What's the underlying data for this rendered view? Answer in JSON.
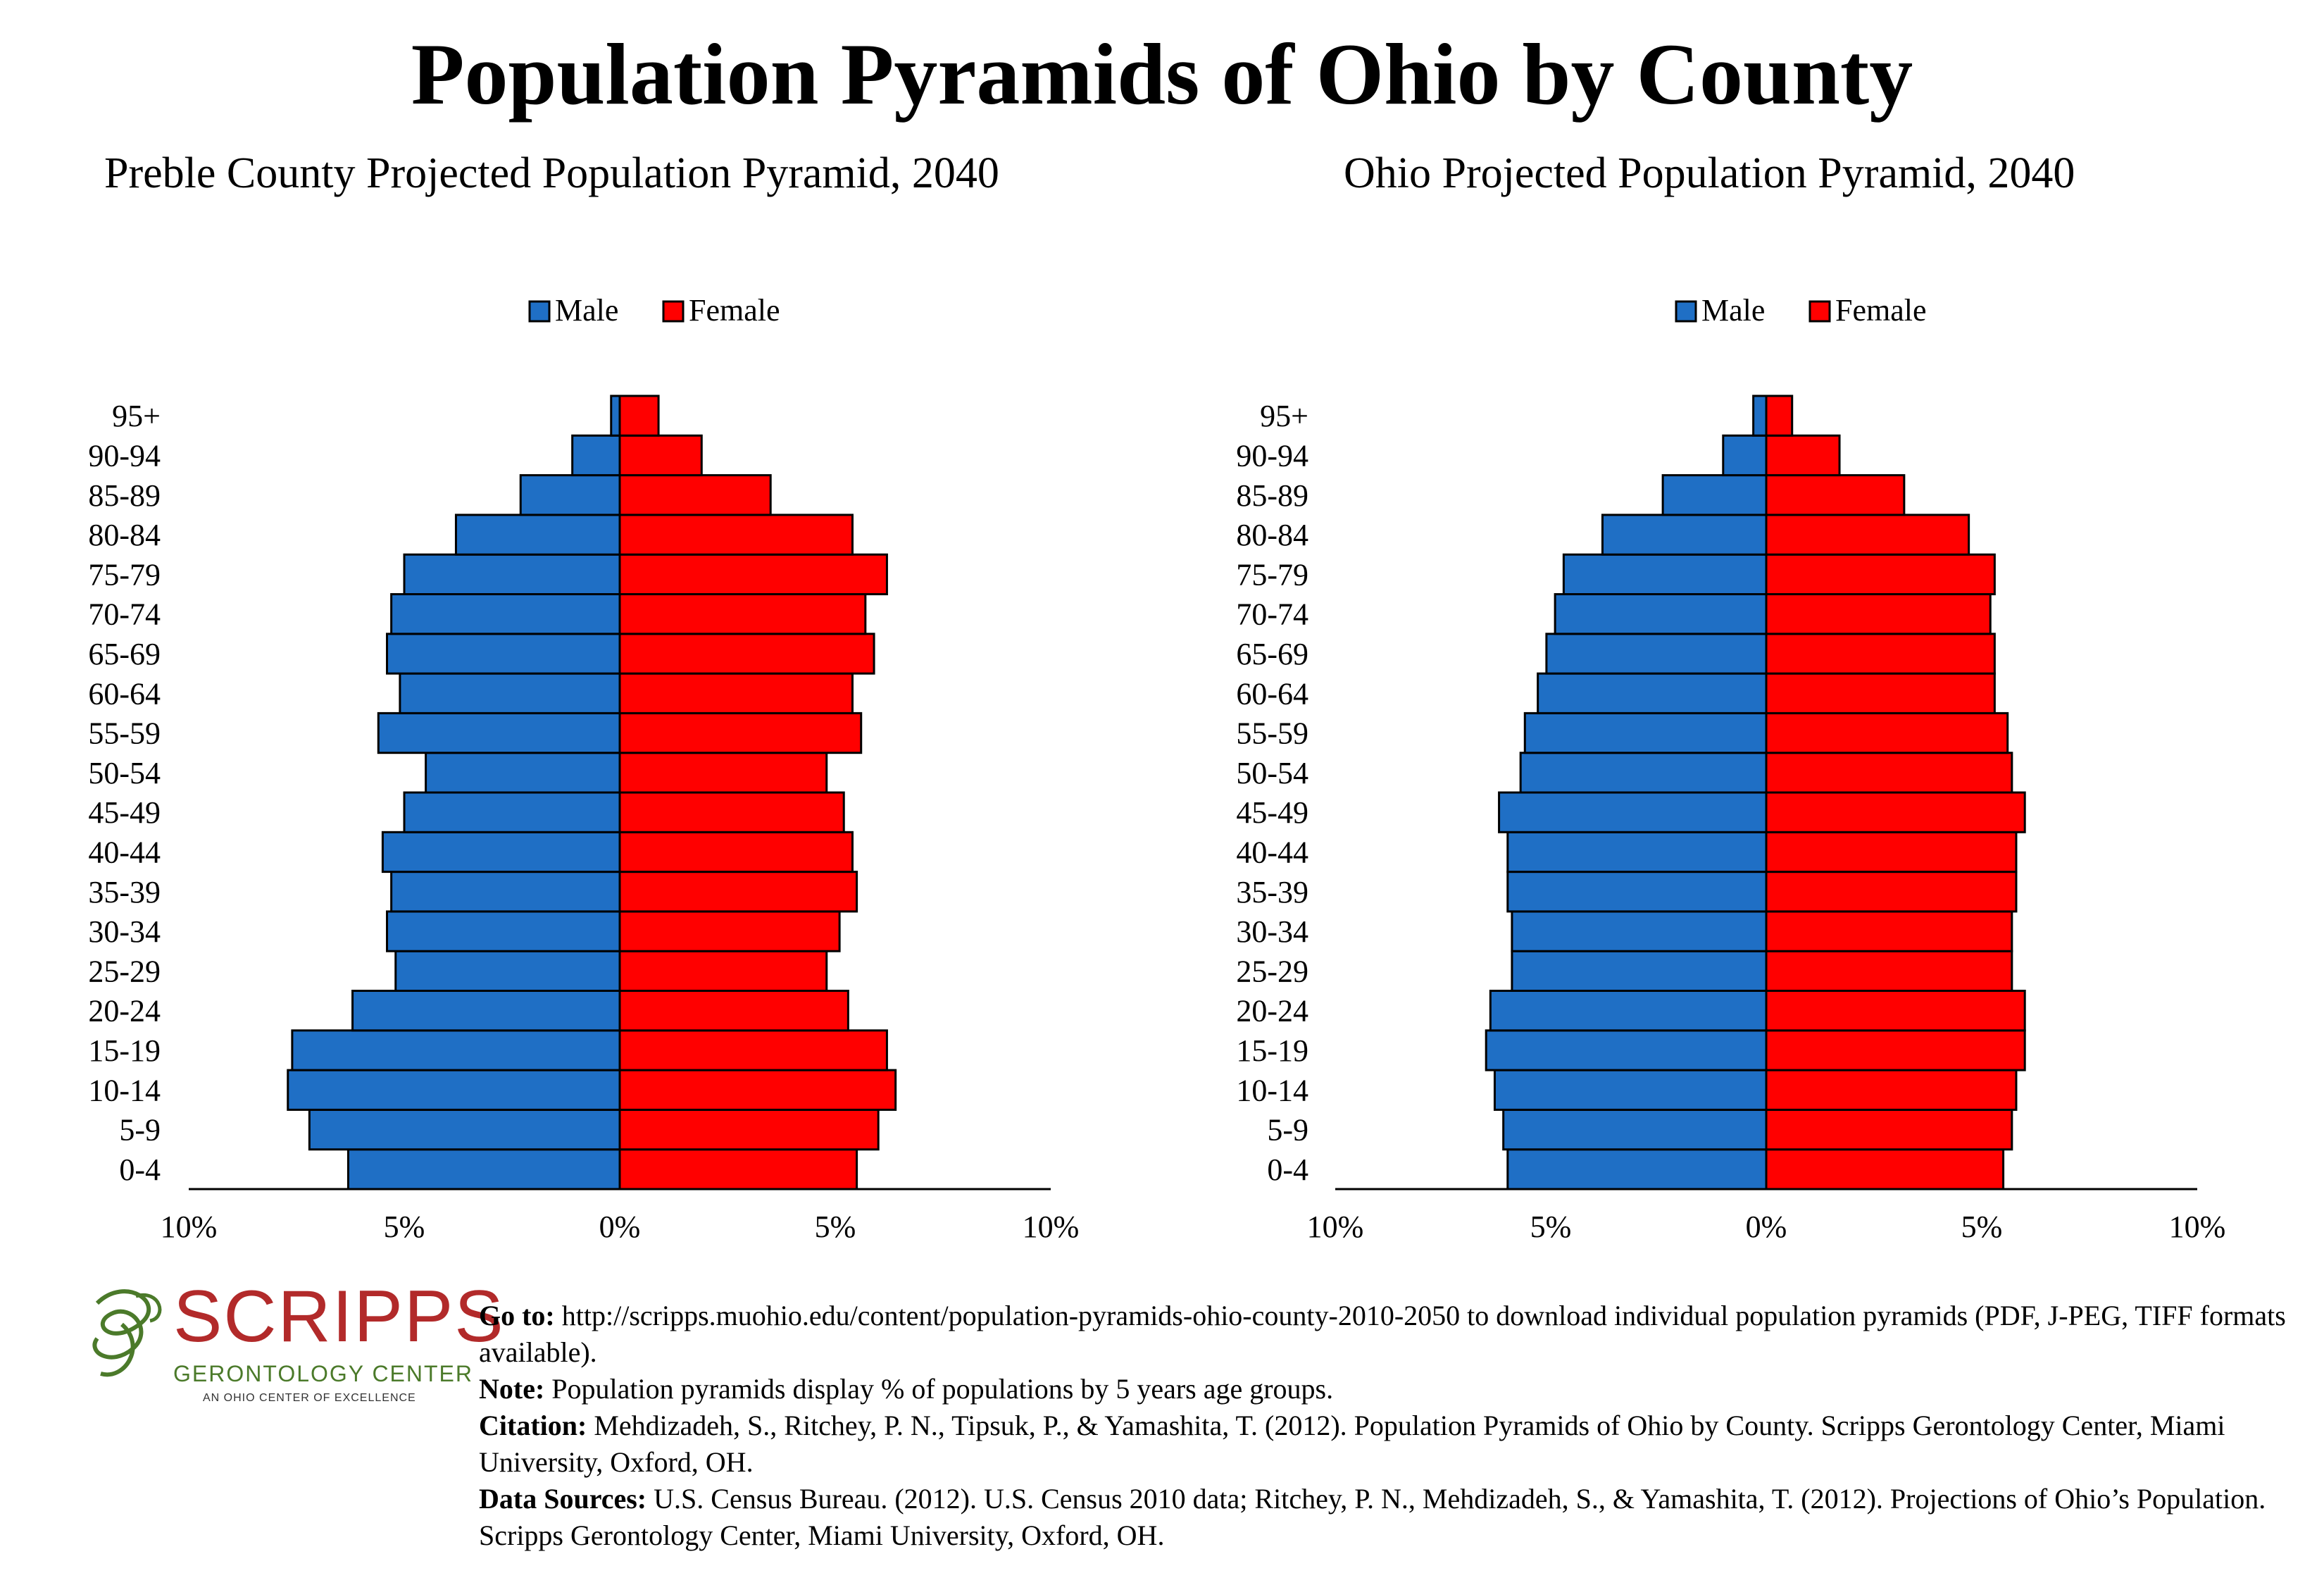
{
  "title": "Population Pyramids of Ohio by County",
  "legend": {
    "male": "Male",
    "female": "Female"
  },
  "colors": {
    "male": "#1f6fc5",
    "female": "#ff0000",
    "outline": "#000000"
  },
  "chart_data": [
    {
      "type": "bar",
      "orientation": "horizontal-pyramid",
      "title": "Preble County Projected Population Pyramid, 2040",
      "categories": [
        "0-4",
        "5-9",
        "10-14",
        "15-19",
        "20-24",
        "25-29",
        "30-34",
        "35-39",
        "40-44",
        "45-49",
        "50-54",
        "55-59",
        "60-64",
        "65-69",
        "70-74",
        "75-79",
        "80-84",
        "85-89",
        "90-94",
        "95+"
      ],
      "series": [
        {
          "name": "Male",
          "values": [
            6.3,
            7.2,
            7.7,
            7.6,
            6.2,
            5.2,
            5.4,
            5.3,
            5.5,
            5.0,
            4.5,
            5.6,
            5.1,
            5.4,
            5.3,
            5.0,
            3.8,
            2.3,
            1.1,
            0.2
          ]
        },
        {
          "name": "Female",
          "values": [
            5.5,
            6.0,
            6.4,
            6.2,
            5.3,
            4.8,
            5.1,
            5.5,
            5.4,
            5.2,
            4.8,
            5.6,
            5.4,
            5.9,
            5.7,
            6.2,
            5.4,
            3.5,
            1.9,
            0.9
          ]
        }
      ],
      "xlim": [
        -10,
        10
      ],
      "xticks": [
        "10%",
        "5%",
        "0%",
        "5%",
        "10%"
      ],
      "legend": "top-center",
      "grid": false
    },
    {
      "type": "bar",
      "orientation": "horizontal-pyramid",
      "title": "Ohio Projected Population Pyramid, 2040",
      "categories": [
        "0-4",
        "5-9",
        "10-14",
        "15-19",
        "20-24",
        "25-29",
        "30-34",
        "35-39",
        "40-44",
        "45-49",
        "50-54",
        "55-59",
        "60-64",
        "65-69",
        "70-74",
        "75-79",
        "80-84",
        "85-89",
        "90-94",
        "95+"
      ],
      "series": [
        {
          "name": "Male",
          "values": [
            6.0,
            6.1,
            6.3,
            6.5,
            6.4,
            5.9,
            5.9,
            6.0,
            6.0,
            6.2,
            5.7,
            5.6,
            5.3,
            5.1,
            4.9,
            4.7,
            3.8,
            2.4,
            1.0,
            0.3
          ]
        },
        {
          "name": "Female",
          "values": [
            5.5,
            5.7,
            5.8,
            6.0,
            6.0,
            5.7,
            5.7,
            5.8,
            5.8,
            6.0,
            5.7,
            5.6,
            5.3,
            5.3,
            5.2,
            5.3,
            4.7,
            3.2,
            1.7,
            0.6
          ]
        }
      ],
      "xlim": [
        -10,
        10
      ],
      "xticks": [
        "10%",
        "5%",
        "0%",
        "5%",
        "10%"
      ],
      "legend": "top-center",
      "grid": false
    }
  ],
  "logo": {
    "name": "SCRIPPS",
    "subtitle": "GERONTOLOGY CENTER",
    "tagline": "AN OHIO CENTER OF EXCELLENCE"
  },
  "notes": {
    "goto_label": "Go to:",
    "goto_text": " http://scripps.muohio.edu/content/population-pyramids-ohio-county-2010-2050 to download individual population pyramids (PDF, J-PEG, TIFF formats available).",
    "note_label": "Note:",
    "note_text": " Population pyramids display % of populations by 5 years age groups.",
    "citation_label": "Citation:",
    "citation_text": " Mehdizadeh, S., Ritchey, P. N., Tipsuk, P., & Yamashita, T. (2012). Population Pyramids of Ohio by County. Scripps Gerontology Center, Miami University, Oxford, OH.",
    "sources_label": "Data Sources:",
    "sources_text": " U.S. Census Bureau. (2012). U.S. Census 2010 data; Ritchey, P. N., Mehdizadeh, S., & Yamashita, T. (2012). Projections of Ohio’s Population. Scripps Gerontology Center, Miami University, Oxford, OH."
  }
}
